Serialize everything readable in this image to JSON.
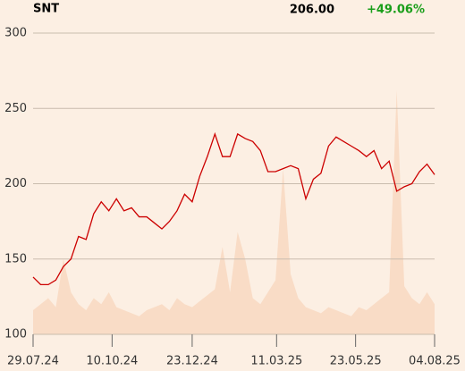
{
  "chart_data": {
    "type": "line",
    "title": "SNT",
    "price": "206.00",
    "change": "+49.06%",
    "x": [
      "2024-07-29",
      "2024-08-05",
      "2024-08-12",
      "2024-08-19",
      "2024-08-26",
      "2024-09-02",
      "2024-09-09",
      "2024-09-16",
      "2024-09-23",
      "2024-09-30",
      "2024-10-07",
      "2024-10-14",
      "2024-10-21",
      "2024-10-28",
      "2024-11-04",
      "2024-11-11",
      "2024-11-18",
      "2024-11-25",
      "2024-12-02",
      "2024-12-09",
      "2024-12-16",
      "2024-12-23",
      "2024-12-30",
      "2025-01-06",
      "2025-01-13",
      "2025-01-20",
      "2025-01-27",
      "2025-02-03",
      "2025-02-10",
      "2025-02-17",
      "2025-02-24",
      "2025-03-03",
      "2025-03-10",
      "2025-03-17",
      "2025-03-24",
      "2025-03-31",
      "2025-04-07",
      "2025-04-14",
      "2025-04-21",
      "2025-04-28",
      "2025-05-05",
      "2025-05-12",
      "2025-05-19",
      "2025-05-26",
      "2025-06-02",
      "2025-06-09",
      "2025-06-16",
      "2025-06-23",
      "2025-06-30",
      "2025-07-07",
      "2025-07-14",
      "2025-07-21",
      "2025-07-28",
      "2025-08-04"
    ],
    "series": [
      {
        "color": "#cc0000",
        "style": "line",
        "values": [
          138,
          133,
          133,
          136,
          145,
          150,
          165,
          163,
          180,
          188,
          182,
          190,
          182,
          184,
          178,
          178,
          174,
          170,
          175,
          182,
          193,
          188,
          205,
          218,
          233,
          218,
          218,
          233,
          230,
          228,
          222,
          208,
          208,
          210,
          212,
          210,
          190,
          203,
          207,
          225,
          231,
          228,
          225,
          222,
          218,
          222,
          210,
          215,
          195,
          198,
          200,
          208,
          213,
          206
        ]
      },
      {
        "color": "#f9dcc6",
        "style": "area",
        "axis": "y2",
        "values": [
          8,
          10,
          12,
          9,
          25,
          14,
          10,
          8,
          12,
          10,
          14,
          9,
          8,
          7,
          6,
          8,
          9,
          10,
          8,
          12,
          10,
          9,
          11,
          13,
          15,
          29,
          14,
          34,
          25,
          12,
          10,
          14,
          18,
          55,
          20,
          12,
          9,
          8,
          7,
          9,
          8,
          7,
          6,
          9,
          8,
          10,
          12,
          14,
          81,
          16,
          12,
          10,
          14,
          10
        ]
      }
    ],
    "xlim": [
      "2024-07-29",
      "2025-08-04"
    ],
    "xticks": [
      {
        "value": "2024-07-29",
        "label": "29.07.24"
      },
      {
        "value": "2024-10-10",
        "label": "10.10.24"
      },
      {
        "value": "2024-12-23",
        "label": "23.12.24"
      },
      {
        "value": "2025-03-11",
        "label": "11.03.25"
      },
      {
        "value": "2025-05-23",
        "label": "23.05.25"
      },
      {
        "value": "2025-08-04",
        "label": "04.08.25"
      }
    ],
    "ylim": [
      100,
      300
    ],
    "yticks": [
      100,
      150,
      200,
      250,
      300
    ],
    "y2lim": [
      0,
      100
    ],
    "grid": true
  }
}
